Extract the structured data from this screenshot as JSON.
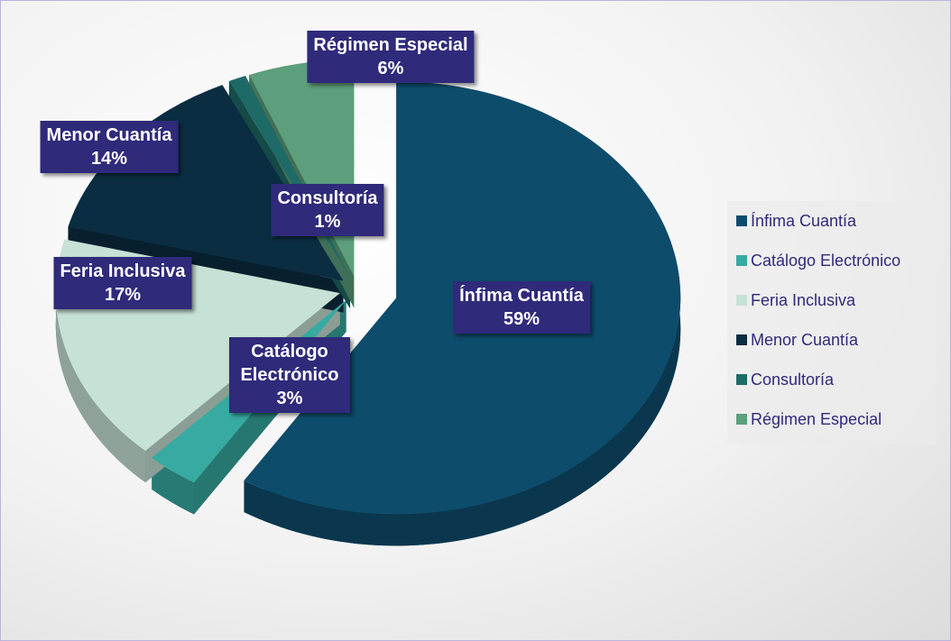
{
  "chart_data": {
    "type": "pie",
    "categories": [
      "Ínfima Cuantía",
      "Catálogo Electrónico",
      "Feria Inclusiva",
      "Menor Cuantía",
      "Consultoría",
      "Régimen Especial"
    ],
    "values": [
      59,
      3,
      17,
      14,
      1,
      6
    ],
    "value_labels": [
      "59%",
      "3%",
      "17%",
      "14%",
      "1%",
      "6%"
    ],
    "colors": [
      "#0e4c6c",
      "#37aaa2",
      "#c6e1d5",
      "#0b2d42",
      "#1e6a66",
      "#5d9e7c"
    ],
    "legend": "right"
  }
}
